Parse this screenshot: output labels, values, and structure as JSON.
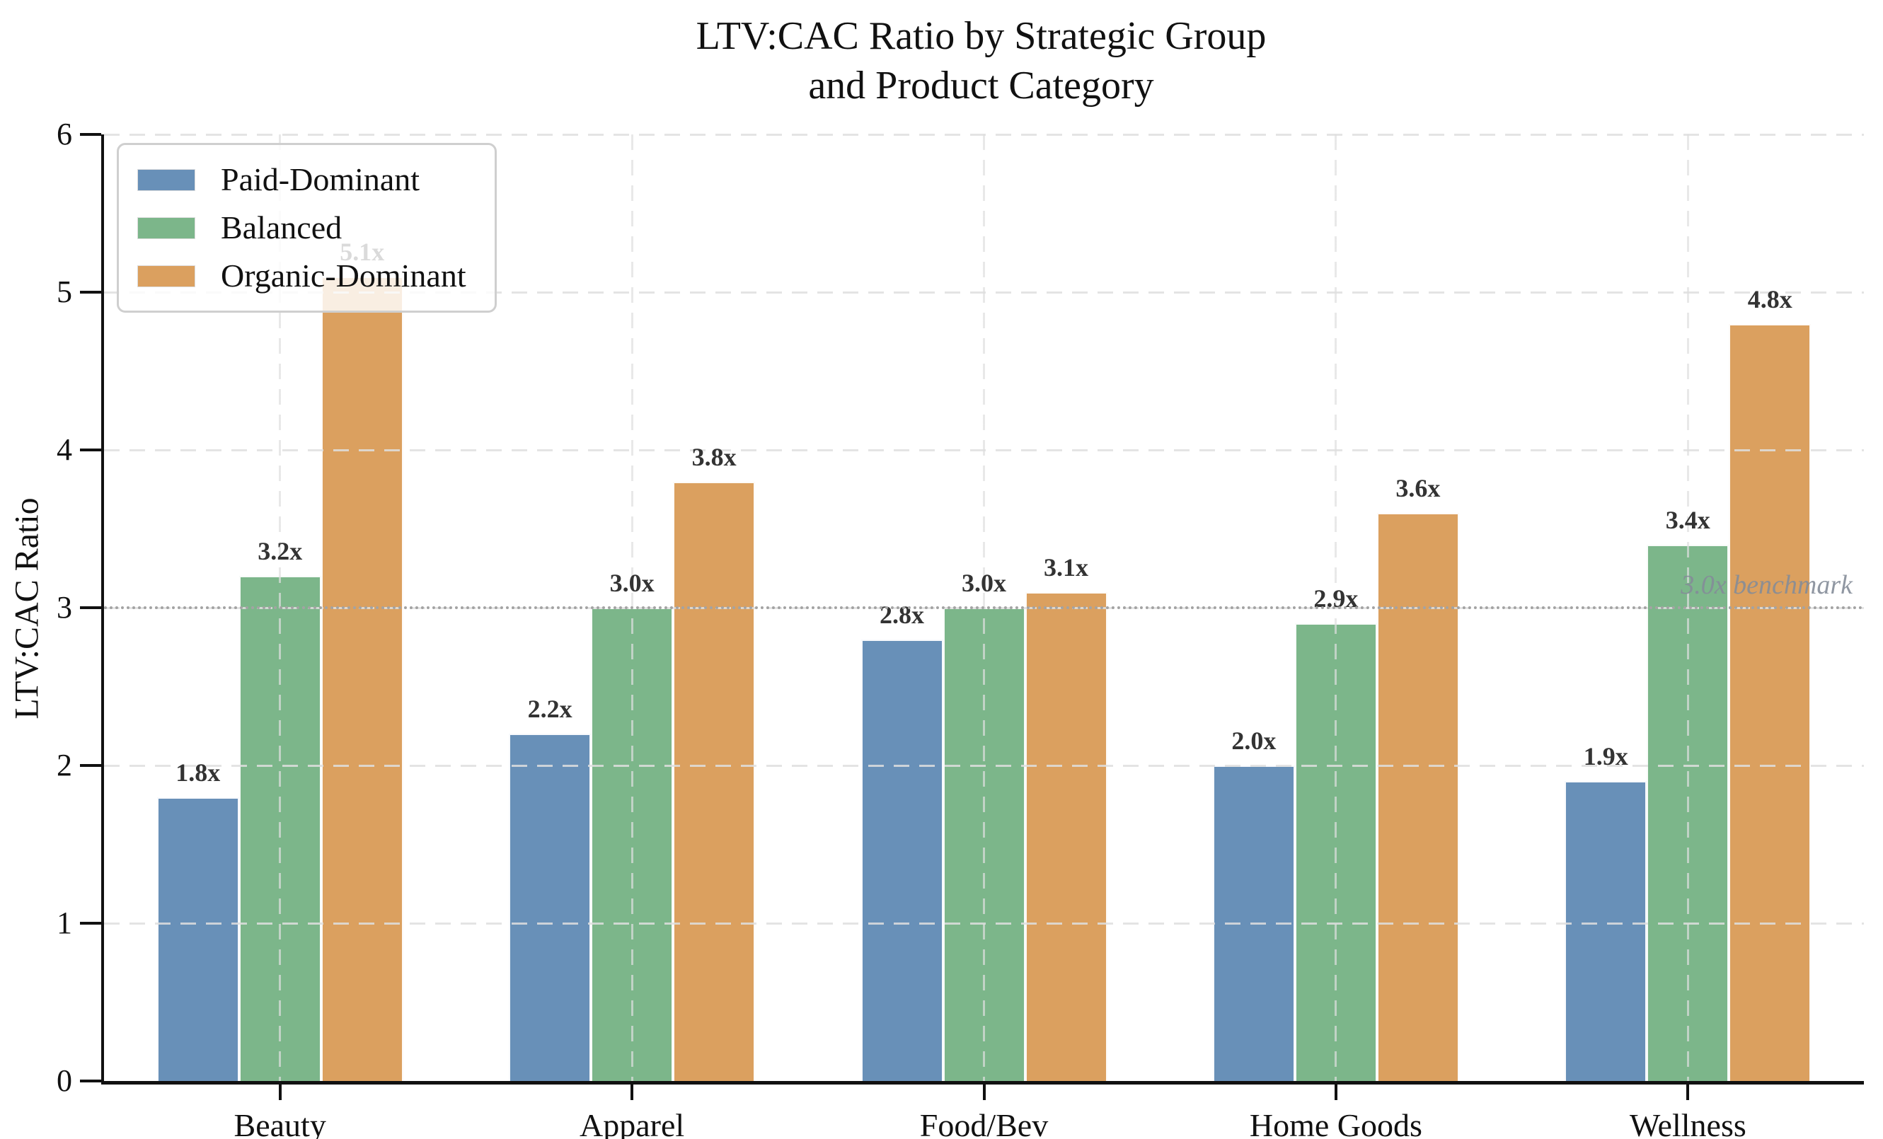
{
  "title": "LTV:CAC Ratio by Strategic Group\nand Product Category",
  "ylabel": "LTV:CAC Ratio",
  "chart_data": {
    "type": "bar",
    "categories": [
      "Beauty",
      "Apparel",
      "Food/Bev",
      "Home Goods",
      "Wellness"
    ],
    "series": [
      {
        "name": "Paid-Dominant",
        "color": "#6890B8",
        "values": [
          1.8,
          2.2,
          2.8,
          2.0,
          1.9
        ],
        "labels": [
          "1.8x",
          "2.2x",
          "2.8x",
          "2.0x",
          "1.9x"
        ]
      },
      {
        "name": "Balanced",
        "color": "#7CB68A",
        "values": [
          3.2,
          3.0,
          3.0,
          2.9,
          3.4
        ],
        "labels": [
          "3.2x",
          "3.0x",
          "3.0x",
          "2.9x",
          "3.4x"
        ]
      },
      {
        "name": "Organic-Dominant",
        "color": "#DBA05F",
        "values": [
          5.1,
          3.8,
          3.1,
          3.6,
          4.8
        ],
        "labels": [
          "5.1x",
          "3.8x",
          "3.1x",
          "3.6x",
          "4.8x"
        ]
      }
    ],
    "ylabel": "LTV:CAC Ratio",
    "ylim": [
      0,
      6
    ],
    "yticks": [
      0,
      1,
      2,
      3,
      4,
      5,
      6
    ],
    "grid": true,
    "legend_position": "upper-left",
    "benchmark": {
      "value": 3.0,
      "label": "3.0x benchmark"
    }
  }
}
